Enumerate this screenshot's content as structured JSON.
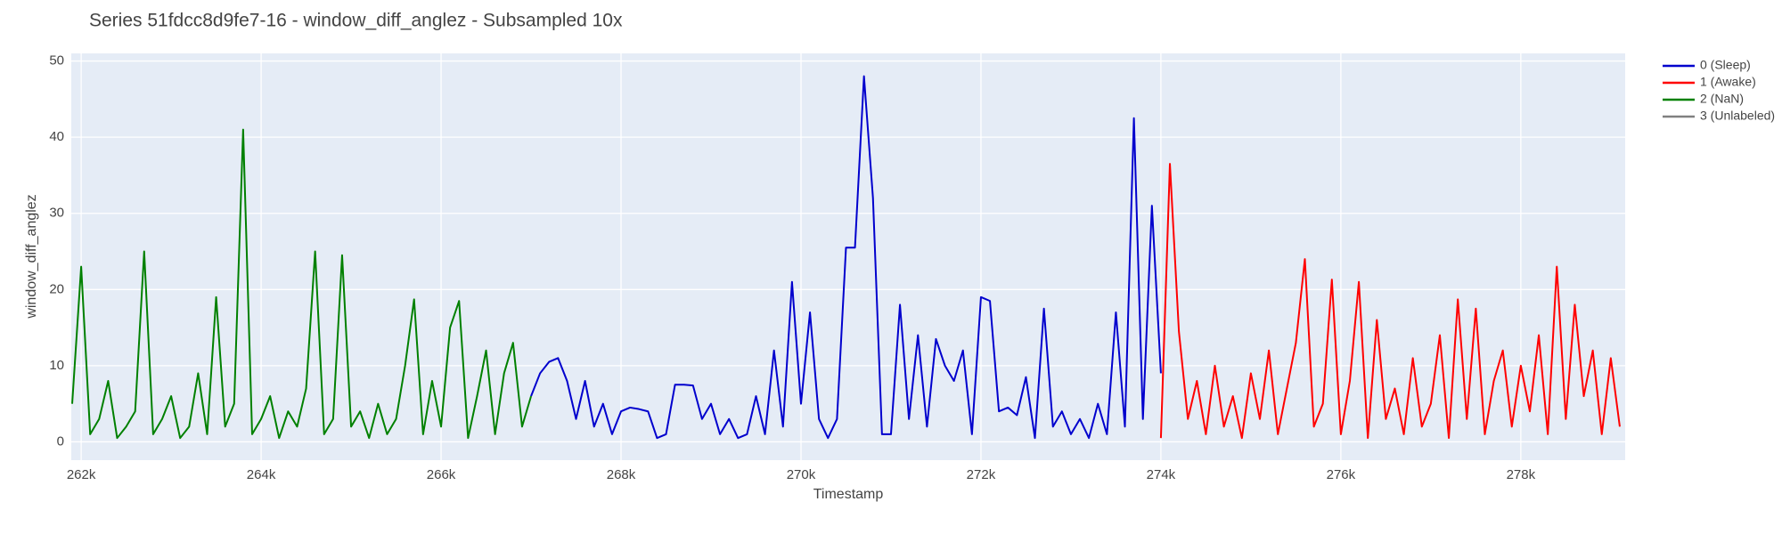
{
  "chart_data": {
    "type": "line",
    "title": "Series 51fdcc8d9fe7-16 - window_diff_anglez - Subsampled 10x",
    "x_label": "Timestamp",
    "y_label": "window_diff_anglez",
    "xlim": [
      261890,
      279160
    ],
    "ylim": [
      -2.4,
      51
    ],
    "xticks": [
      {
        "value": 262000,
        "label": "262k"
      },
      {
        "value": 264000,
        "label": "264k"
      },
      {
        "value": 266000,
        "label": "266k"
      },
      {
        "value": 268000,
        "label": "268k"
      },
      {
        "value": 270000,
        "label": "270k"
      },
      {
        "value": 272000,
        "label": "272k"
      },
      {
        "value": 274000,
        "label": "274k"
      },
      {
        "value": 276000,
        "label": "276k"
      },
      {
        "value": 278000,
        "label": "278k"
      }
    ],
    "yticks": [
      0,
      10,
      20,
      30,
      40,
      50
    ],
    "grid": true,
    "legend": "right",
    "series": [
      {
        "name": "0 (Sleep)",
        "color": "#0000cd",
        "x": [
          267000,
          267100,
          267200,
          267300,
          267400,
          267500,
          267600,
          267700,
          267800,
          267900,
          268000,
          268100,
          268200,
          268300,
          268400,
          268500,
          268600,
          268700,
          268800,
          268900,
          269000,
          269100,
          269200,
          269300,
          269400,
          269500,
          269600,
          269700,
          269800,
          269900,
          270000,
          270100,
          270200,
          270300,
          270400,
          270500,
          270600,
          270700,
          270800,
          270900,
          271000,
          271100,
          271200,
          271300,
          271400,
          271500,
          271600,
          271700,
          271800,
          271900,
          272000,
          272100,
          272200,
          272300,
          272400,
          272500,
          272600,
          272700,
          272800,
          272900,
          273000,
          273100,
          273200,
          273300,
          273400,
          273500,
          273600,
          273700,
          273800,
          273900,
          274000
        ],
        "values": [
          6,
          9,
          10.5,
          11,
          8,
          3,
          8,
          2,
          5,
          1,
          4,
          4.5,
          4.3,
          4,
          0.5,
          1,
          7.5,
          7.5,
          7.4,
          3,
          5,
          1,
          3,
          0.5,
          1,
          6,
          1,
          12,
          2,
          21,
          5,
          17,
          3,
          0.5,
          3,
          25.5,
          25.5,
          48,
          32,
          1,
          1,
          18,
          3,
          14,
          2,
          13.5,
          10,
          8,
          12,
          1,
          19,
          18.5,
          4,
          4.5,
          3.5,
          8.5,
          0.5,
          17.5,
          2,
          4,
          1,
          3,
          0.5,
          5,
          1,
          17,
          2,
          42.5,
          3,
          31,
          9
        ]
      },
      {
        "name": "1 (Awake)",
        "color": "#ff0000",
        "x": [
          274000,
          274100,
          274200,
          274300,
          274400,
          274500,
          274600,
          274700,
          274800,
          274900,
          275000,
          275100,
          275200,
          275300,
          275400,
          275500,
          275600,
          275700,
          275800,
          275900,
          276000,
          276100,
          276200,
          276300,
          276400,
          276500,
          276600,
          276700,
          276800,
          276900,
          277000,
          277100,
          277200,
          277300,
          277400,
          277500,
          277600,
          277700,
          277800,
          277900,
          278000,
          278100,
          278200,
          278300,
          278400,
          278500,
          278600,
          278700,
          278800,
          278900,
          279000,
          279100
        ],
        "values": [
          0.5,
          36.5,
          14.5,
          3,
          8,
          1,
          10,
          2,
          6,
          0.5,
          9,
          3,
          12,
          1,
          7,
          13,
          24,
          2,
          5,
          21.3,
          1,
          8,
          21,
          0.5,
          16,
          3,
          7,
          1,
          11,
          2,
          5,
          14,
          0.5,
          18.7,
          3,
          17.5,
          1,
          8,
          12,
          2,
          10,
          4,
          14,
          1,
          23,
          3,
          18,
          6,
          12,
          1,
          11,
          2
        ]
      },
      {
        "name": "2 (NaN)",
        "color": "#008000",
        "x": [
          261900,
          262000,
          262100,
          262200,
          262300,
          262400,
          262500,
          262600,
          262700,
          262800,
          262900,
          263000,
          263100,
          263200,
          263300,
          263400,
          263500,
          263600,
          263700,
          263800,
          263900,
          264000,
          264100,
          264200,
          264300,
          264400,
          264500,
          264600,
          264700,
          264800,
          264900,
          265000,
          265100,
          265200,
          265300,
          265400,
          265500,
          265600,
          265700,
          265800,
          265900,
          266000,
          266100,
          266200,
          266300,
          266400,
          266500,
          266600,
          266700,
          266800,
          266900,
          267000
        ],
        "values": [
          5,
          23,
          1,
          3,
          8,
          0.5,
          2,
          4,
          25,
          1,
          3,
          6,
          0.5,
          2,
          9,
          1,
          19,
          2,
          5,
          41,
          1,
          3,
          6,
          0.5,
          4,
          2,
          7,
          25,
          1,
          3,
          24.5,
          2,
          4,
          0.5,
          5,
          1,
          3,
          10,
          18.7,
          1,
          8,
          2,
          15,
          18.5,
          0.5,
          6,
          12,
          1,
          9,
          13,
          2,
          6
        ]
      },
      {
        "name": "3 (Unlabeled)",
        "color": "#808080",
        "x": [],
        "values": []
      }
    ]
  }
}
